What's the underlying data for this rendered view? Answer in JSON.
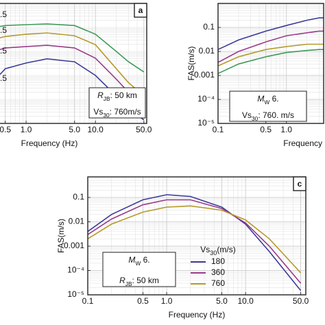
{
  "chart_data": [
    {
      "type": "line",
      "title": "a",
      "xlabel": "Frequency (Hz)",
      "log_x": true,
      "log_y": true,
      "grid": true,
      "xlim": [
        0.1,
        55
      ],
      "ylim": [
        1e-05,
        1
      ],
      "xticks": [
        0.5,
        {
          "value": 1,
          "label": "1.0"
        },
        {
          "value": 5,
          "label": "5.0"
        },
        {
          "value": 10,
          "label": "10.0"
        },
        {
          "value": 50,
          "label": "50.0"
        }
      ],
      "curve_labels": [
        ".5",
        ".5",
        ".5",
        ".5"
      ],
      "annotation": [
        [
          "R",
          "JB",
          ": 50 km"
        ],
        [
          "Vs",
          "30",
          ": 760m/s"
        ]
      ],
      "x": [
        0.42,
        0.5,
        1,
        2,
        5,
        10,
        20,
        30,
        50
      ],
      "series": [
        {
          "color": "#3e9a5a",
          "values": [
            0.11,
            0.12,
            0.13,
            0.14,
            0.12,
            0.052,
            0.01,
            0.0037,
            0.0014
          ]
        },
        {
          "color": "#b59a2a",
          "values": [
            0.037,
            0.042,
            0.052,
            0.059,
            0.045,
            0.019,
            0.0019,
            0.0005,
            0.00014
          ]
        },
        {
          "color": "#9a3a8a",
          "values": [
            0.012,
            0.014,
            0.016,
            0.018,
            0.014,
            0.0052,
            0.0007,
            0.0002,
            4e-05
          ]
        },
        {
          "color": "#3a3a9a",
          "values": [
            0.0011,
            0.0019,
            0.0033,
            0.0049,
            0.0037,
            0.001,
            0.00014,
            4e-05,
            1.4e-05
          ]
        }
      ]
    },
    {
      "type": "line",
      "xlabel": "Frequency",
      "ylabel": "FAS(m/s)",
      "log_x": true,
      "log_y": true,
      "grid": true,
      "xlim": [
        0.1,
        3.5
      ],
      "ylim": [
        1e-05,
        1
      ],
      "xticks": [
        0.1,
        0.5,
        {
          "value": 1,
          "label": "1.0"
        }
      ],
      "yticks": [
        0.1,
        0.01,
        0.001,
        {
          "value": 0.0001,
          "label": "10⁻⁴"
        },
        {
          "value": 1e-05,
          "label": "10⁻⁵"
        }
      ],
      "annotation": [
        [
          "M",
          "W",
          " 6."
        ],
        [
          "Vs",
          "30",
          ": 760. m/s"
        ]
      ],
      "x": [
        0.1,
        0.2,
        0.5,
        1,
        2,
        3,
        3.5
      ],
      "series": [
        {
          "color": "#3a3a9a",
          "values": [
            0.012,
            0.03,
            0.07,
            0.12,
            0.2,
            0.25,
            0.25
          ]
        },
        {
          "color": "#9a3a8a",
          "values": [
            0.0035,
            0.01,
            0.025,
            0.045,
            0.06,
            0.07,
            0.07
          ]
        },
        {
          "color": "#b59a2a",
          "values": [
            0.0025,
            0.006,
            0.012,
            0.016,
            0.02,
            0.02,
            0.02
          ]
        },
        {
          "color": "#3e9a5a",
          "values": [
            0.0012,
            0.003,
            0.006,
            0.009,
            0.011,
            0.012,
            0.012
          ]
        }
      ]
    },
    {
      "type": "line",
      "title": "c",
      "xlabel": "Frequency (Hz)",
      "ylabel": "FAS(m/s)",
      "log_x": true,
      "log_y": true,
      "grid": true,
      "xlim": [
        0.1,
        58
      ],
      "ylim": [
        1e-05,
        0.7
      ],
      "xticks": [
        0.1,
        0.5,
        {
          "value": 1,
          "label": "1.0"
        },
        {
          "value": 5,
          "label": "5.0"
        },
        {
          "value": 10,
          "label": "10.0"
        },
        {
          "value": 50,
          "label": "50.0"
        }
      ],
      "yticks": [
        0.1,
        0.01,
        0.001,
        {
          "value": 0.0001,
          "label": "10⁻⁴"
        },
        {
          "value": 1e-05,
          "label": "10⁻⁵"
        }
      ],
      "annotation": [
        [
          "M",
          "W",
          " 6."
        ],
        [
          "R",
          "JB",
          ": 50 km"
        ]
      ],
      "legend_title": [
        "Vs",
        "30",
        "(m/s)"
      ],
      "x": [
        0.1,
        0.2,
        0.5,
        1,
        2,
        5,
        10,
        20,
        50
      ],
      "series": [
        {
          "name": "180",
          "color": "#3a3a9a",
          "values": [
            0.004,
            0.02,
            0.08,
            0.13,
            0.11,
            0.04,
            0.008,
            0.0006,
            1.5e-05
          ]
        },
        {
          "name": "360",
          "color": "#9a3a8a",
          "values": [
            0.003,
            0.013,
            0.05,
            0.08,
            0.08,
            0.035,
            0.009,
            0.001,
            3e-05
          ]
        },
        {
          "name": "760",
          "color": "#b59a2a",
          "values": [
            0.002,
            0.008,
            0.025,
            0.04,
            0.045,
            0.03,
            0.012,
            0.002,
            8e-05
          ]
        }
      ]
    }
  ]
}
